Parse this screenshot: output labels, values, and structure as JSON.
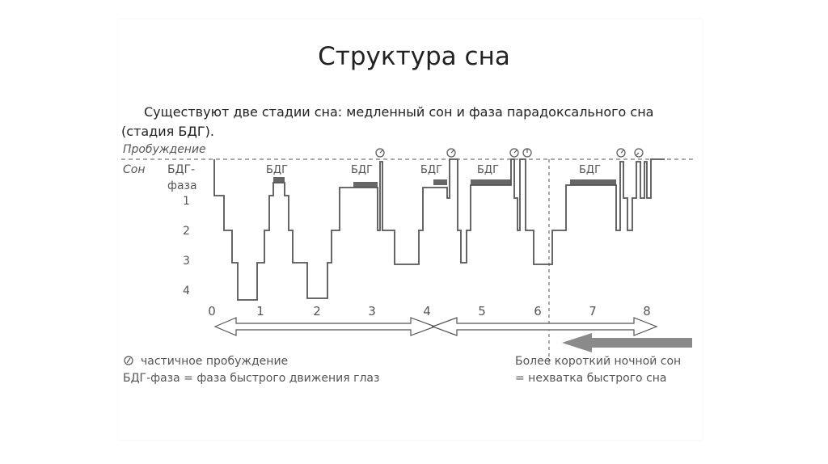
{
  "slide": {
    "title": "Структура сна",
    "intro": "Существуют две стадии сна: медленный сон и фаза парадоксального сна (стадия БДГ)."
  },
  "diagram": {
    "row_labels": {
      "wake": "Пробуждение",
      "sleep": "Сон"
    },
    "rem_phase_label_line1": "БДГ-",
    "rem_phase_label_line2": "фаза",
    "stage_labels": [
      "1",
      "2",
      "3",
      "4"
    ],
    "hour_ticks": [
      "0",
      "1",
      "2",
      "3",
      "4",
      "5",
      "6",
      "7",
      "8"
    ],
    "rem_labels": [
      "БДГ",
      "БДГ",
      "БДГ",
      "БДГ",
      "БДГ"
    ],
    "legend": {
      "partial_wake": "частичное пробуждение",
      "rem_definition": "БДГ-фаза = фаза быстрого движения глаз"
    },
    "note": {
      "line1": "Более короткий ночной сон",
      "line2": "= нехватка быстрого сна"
    },
    "colors": {
      "line": "#555555",
      "rem_bar": "#666666",
      "arrow": "#8a8a8a"
    },
    "icons": {
      "partial_wake": "clock-mark-icon"
    }
  }
}
